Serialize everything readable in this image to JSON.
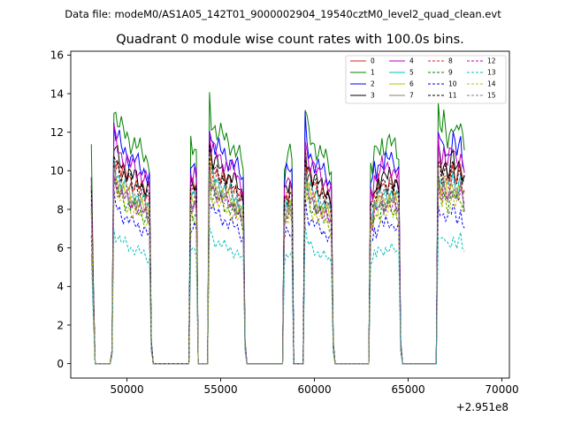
{
  "chart_data": {
    "type": "line",
    "suptitle": "Data file: modeM0/AS1A05_142T01_9000002904_19540cztM0_level2_quad_clean.evt",
    "title": "Quadrant 0 module wise count rates with 100.0s bins.",
    "xlabel": "",
    "ylabel": "",
    "x_offset_label": "+2.951e8",
    "xlim": [
      47000,
      70400
    ],
    "ylim": [
      -0.75,
      16.2
    ],
    "x_ticks": [
      50000,
      55000,
      60000,
      65000,
      70000
    ],
    "x_tick_labels": [
      "50000",
      "55000",
      "60000",
      "65000",
      "70000"
    ],
    "y_ticks": [
      0,
      2,
      4,
      6,
      8,
      10,
      12,
      14,
      16
    ],
    "y_tick_labels": [
      "0",
      "2",
      "4",
      "6",
      "8",
      "10",
      "12",
      "14",
      "16"
    ],
    "grid": false,
    "legend_position": "top-right",
    "bin_seconds": 100,
    "x_start": 48100,
    "profile_shape": [
      0.92,
      0.4,
      0,
      0,
      0,
      0,
      0,
      0,
      0,
      0,
      0,
      0.06,
      1.12,
      1.08,
      1.06,
      1.04,
      1.02,
      1.01,
      1.0,
      0.99,
      0.98,
      0.97,
      0.96,
      0.96,
      0.95,
      0.94,
      0.93,
      0.92,
      0.91,
      0.9,
      0.89,
      0.88,
      0.1,
      0,
      0,
      0,
      0,
      0,
      0,
      0,
      0,
      0,
      0,
      0,
      0,
      0,
      0,
      0,
      0,
      0,
      0,
      0,
      0,
      0.95,
      0.93,
      0.94,
      0.92,
      0,
      0,
      0,
      0,
      0,
      0,
      1.15,
      1.06,
      1.04,
      1.03,
      1.02,
      1.01,
      1.0,
      0.99,
      0.98,
      0.97,
      0.96,
      0.96,
      0.95,
      0.94,
      0.93,
      0.92,
      0.9,
      0.88,
      0.86,
      0.1,
      0,
      0,
      0,
      0,
      0,
      0,
      0,
      0,
      0,
      0,
      0,
      0,
      0,
      0,
      0,
      0,
      0,
      0,
      0,
      0,
      0.86,
      0.9,
      0.89,
      0.92,
      0.9,
      0,
      0,
      0,
      0,
      0,
      0,
      1.12,
      1.03,
      1.0,
      0.98,
      0.96,
      0.95,
      0.94,
      0.93,
      0.92,
      0.91,
      0.9,
      0.89,
      0.88,
      0.86,
      0.84,
      0.1,
      0,
      0,
      0,
      0,
      0,
      0,
      0,
      0,
      0,
      0,
      0,
      0,
      0,
      0,
      0,
      0,
      0,
      0,
      0,
      0.86,
      0.84,
      0.92,
      0.9,
      0.95,
      0.93,
      0.97,
      0.94,
      0.96,
      0.95,
      0.97,
      0.96,
      0.94,
      0.95,
      0.93,
      0.92,
      0.1,
      0,
      0,
      0,
      0,
      0,
      0,
      0,
      0,
      0,
      0,
      0,
      0,
      0,
      0,
      0,
      0,
      0,
      0,
      0,
      1.1,
      1.04,
      1.0,
      1.05,
      1.02,
      0.98,
      1.0,
      1.03,
      1.06,
      1.01,
      0.99,
      1.02,
      1.04,
      0.97,
      0.95
    ],
    "series": [
      {
        "name": "0",
        "level": 9.8,
        "color": "#d62728",
        "dashed": false
      },
      {
        "name": "1",
        "level": 11.9,
        "color": "#008000",
        "dashed": false
      },
      {
        "name": "2",
        "level": 11.0,
        "color": "#0000ff",
        "dashed": false
      },
      {
        "name": "3",
        "level": 10.1,
        "color": "#000000",
        "dashed": false
      },
      {
        "name": "4",
        "level": 10.6,
        "color": "#bf00bf",
        "dashed": false
      },
      {
        "name": "5",
        "level": 9.2,
        "color": "#00bfbf",
        "dashed": false
      },
      {
        "name": "6",
        "level": 8.9,
        "color": "#bfbf00",
        "dashed": false
      },
      {
        "name": "7",
        "level": 8.7,
        "color": "#808080",
        "dashed": false
      },
      {
        "name": "8",
        "level": 9.5,
        "color": "#d62728",
        "dashed": true
      },
      {
        "name": "9",
        "level": 8.4,
        "color": "#008000",
        "dashed": true
      },
      {
        "name": "10",
        "level": 7.6,
        "color": "#0000ff",
        "dashed": true
      },
      {
        "name": "11",
        "level": 9.7,
        "color": "#000000",
        "dashed": true
      },
      {
        "name": "12",
        "level": 8.6,
        "color": "#bf00bf",
        "dashed": true
      },
      {
        "name": "13",
        "level": 6.2,
        "color": "#00bfbf",
        "dashed": true
      },
      {
        "name": "14",
        "level": 8.2,
        "color": "#bfbf00",
        "dashed": true
      },
      {
        "name": "15",
        "level": 8.9,
        "color": "#808080",
        "dashed": true
      }
    ]
  }
}
